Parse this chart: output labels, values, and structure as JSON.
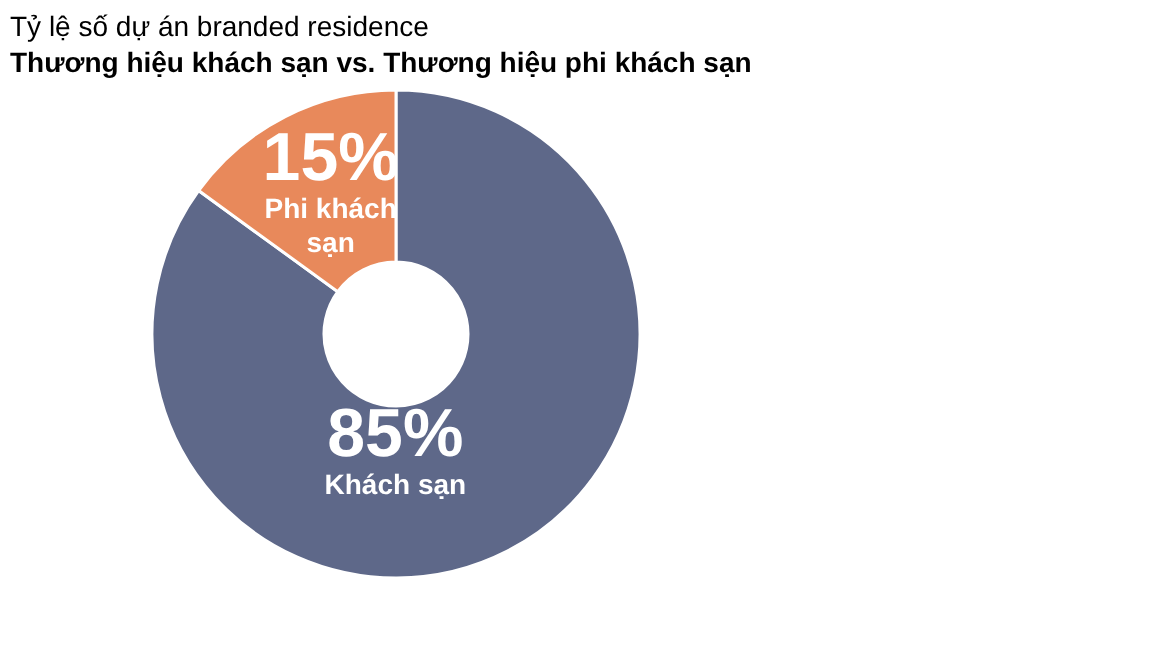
{
  "chart_data": {
    "type": "donut",
    "title": "Tỷ lệ số dự án branded residence",
    "subtitle": "Thương hiệu khách sạn vs. Thương hiệu phi khách sạn",
    "categories": [
      "Khách sạn",
      "Phi khách sạn"
    ],
    "values": [
      85,
      15
    ],
    "colors": [
      "#5e6889",
      "#e8895b"
    ],
    "value_labels": [
      "85%",
      "15%"
    ]
  }
}
